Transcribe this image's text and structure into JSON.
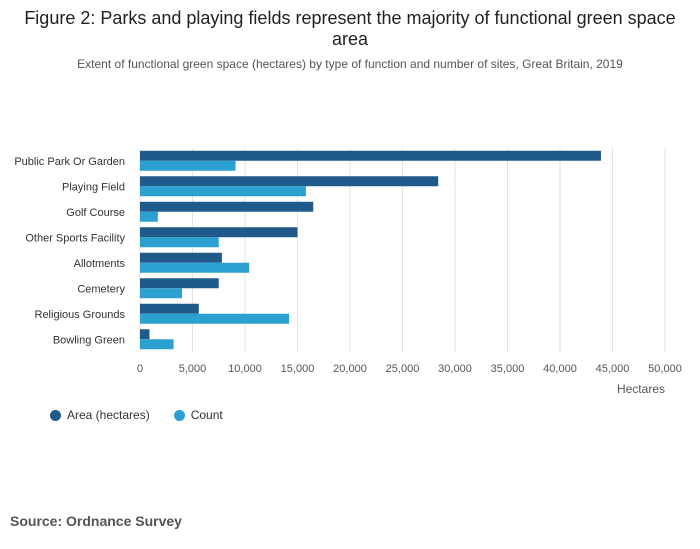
{
  "header": {
    "title": "Figure 2: Parks and playing fields represent the majority of functional green space area",
    "subtitle": "Extent of functional green space (hectares) by type of function and number of sites, Great Britain, 2019"
  },
  "source": "Source: Ordnance Survey",
  "colors": {
    "area": "#1f5a8a",
    "count": "#2ca0d0",
    "grid": "#e3e3e3",
    "axis_text": "#555555"
  },
  "chart_data": {
    "type": "bar",
    "orientation": "horizontal",
    "title": "Figure 2: Parks and playing fields represent the majority of functional green space area",
    "subtitle": "Extent of functional green space (hectares) by type of function and number of sites, Great Britain, 2019",
    "xlabel": "Hectares",
    "ylabel": "",
    "xlim": [
      0,
      50000
    ],
    "xticks": [
      0,
      5000,
      10000,
      15000,
      20000,
      25000,
      30000,
      35000,
      40000,
      45000,
      50000
    ],
    "xtick_labels": [
      "0",
      "5,000",
      "10,000",
      "15,000",
      "20,000",
      "25,000",
      "30,000",
      "35,000",
      "40,000",
      "45,000",
      "50,000"
    ],
    "grid": true,
    "legend_position": "bottom-left",
    "categories": [
      "Public Park Or Garden",
      "Playing Field",
      "Golf Course",
      "Other Sports Facility",
      "Allotments",
      "Cemetery",
      "Religious Grounds",
      "Bowling Green"
    ],
    "series": [
      {
        "name": "Area (hectares)",
        "values": [
          43900,
          28400,
          16500,
          15000,
          7800,
          7500,
          5600,
          900
        ]
      },
      {
        "name": "Count",
        "values": [
          9100,
          15800,
          1700,
          7500,
          10400,
          4000,
          14200,
          3200
        ]
      }
    ]
  }
}
